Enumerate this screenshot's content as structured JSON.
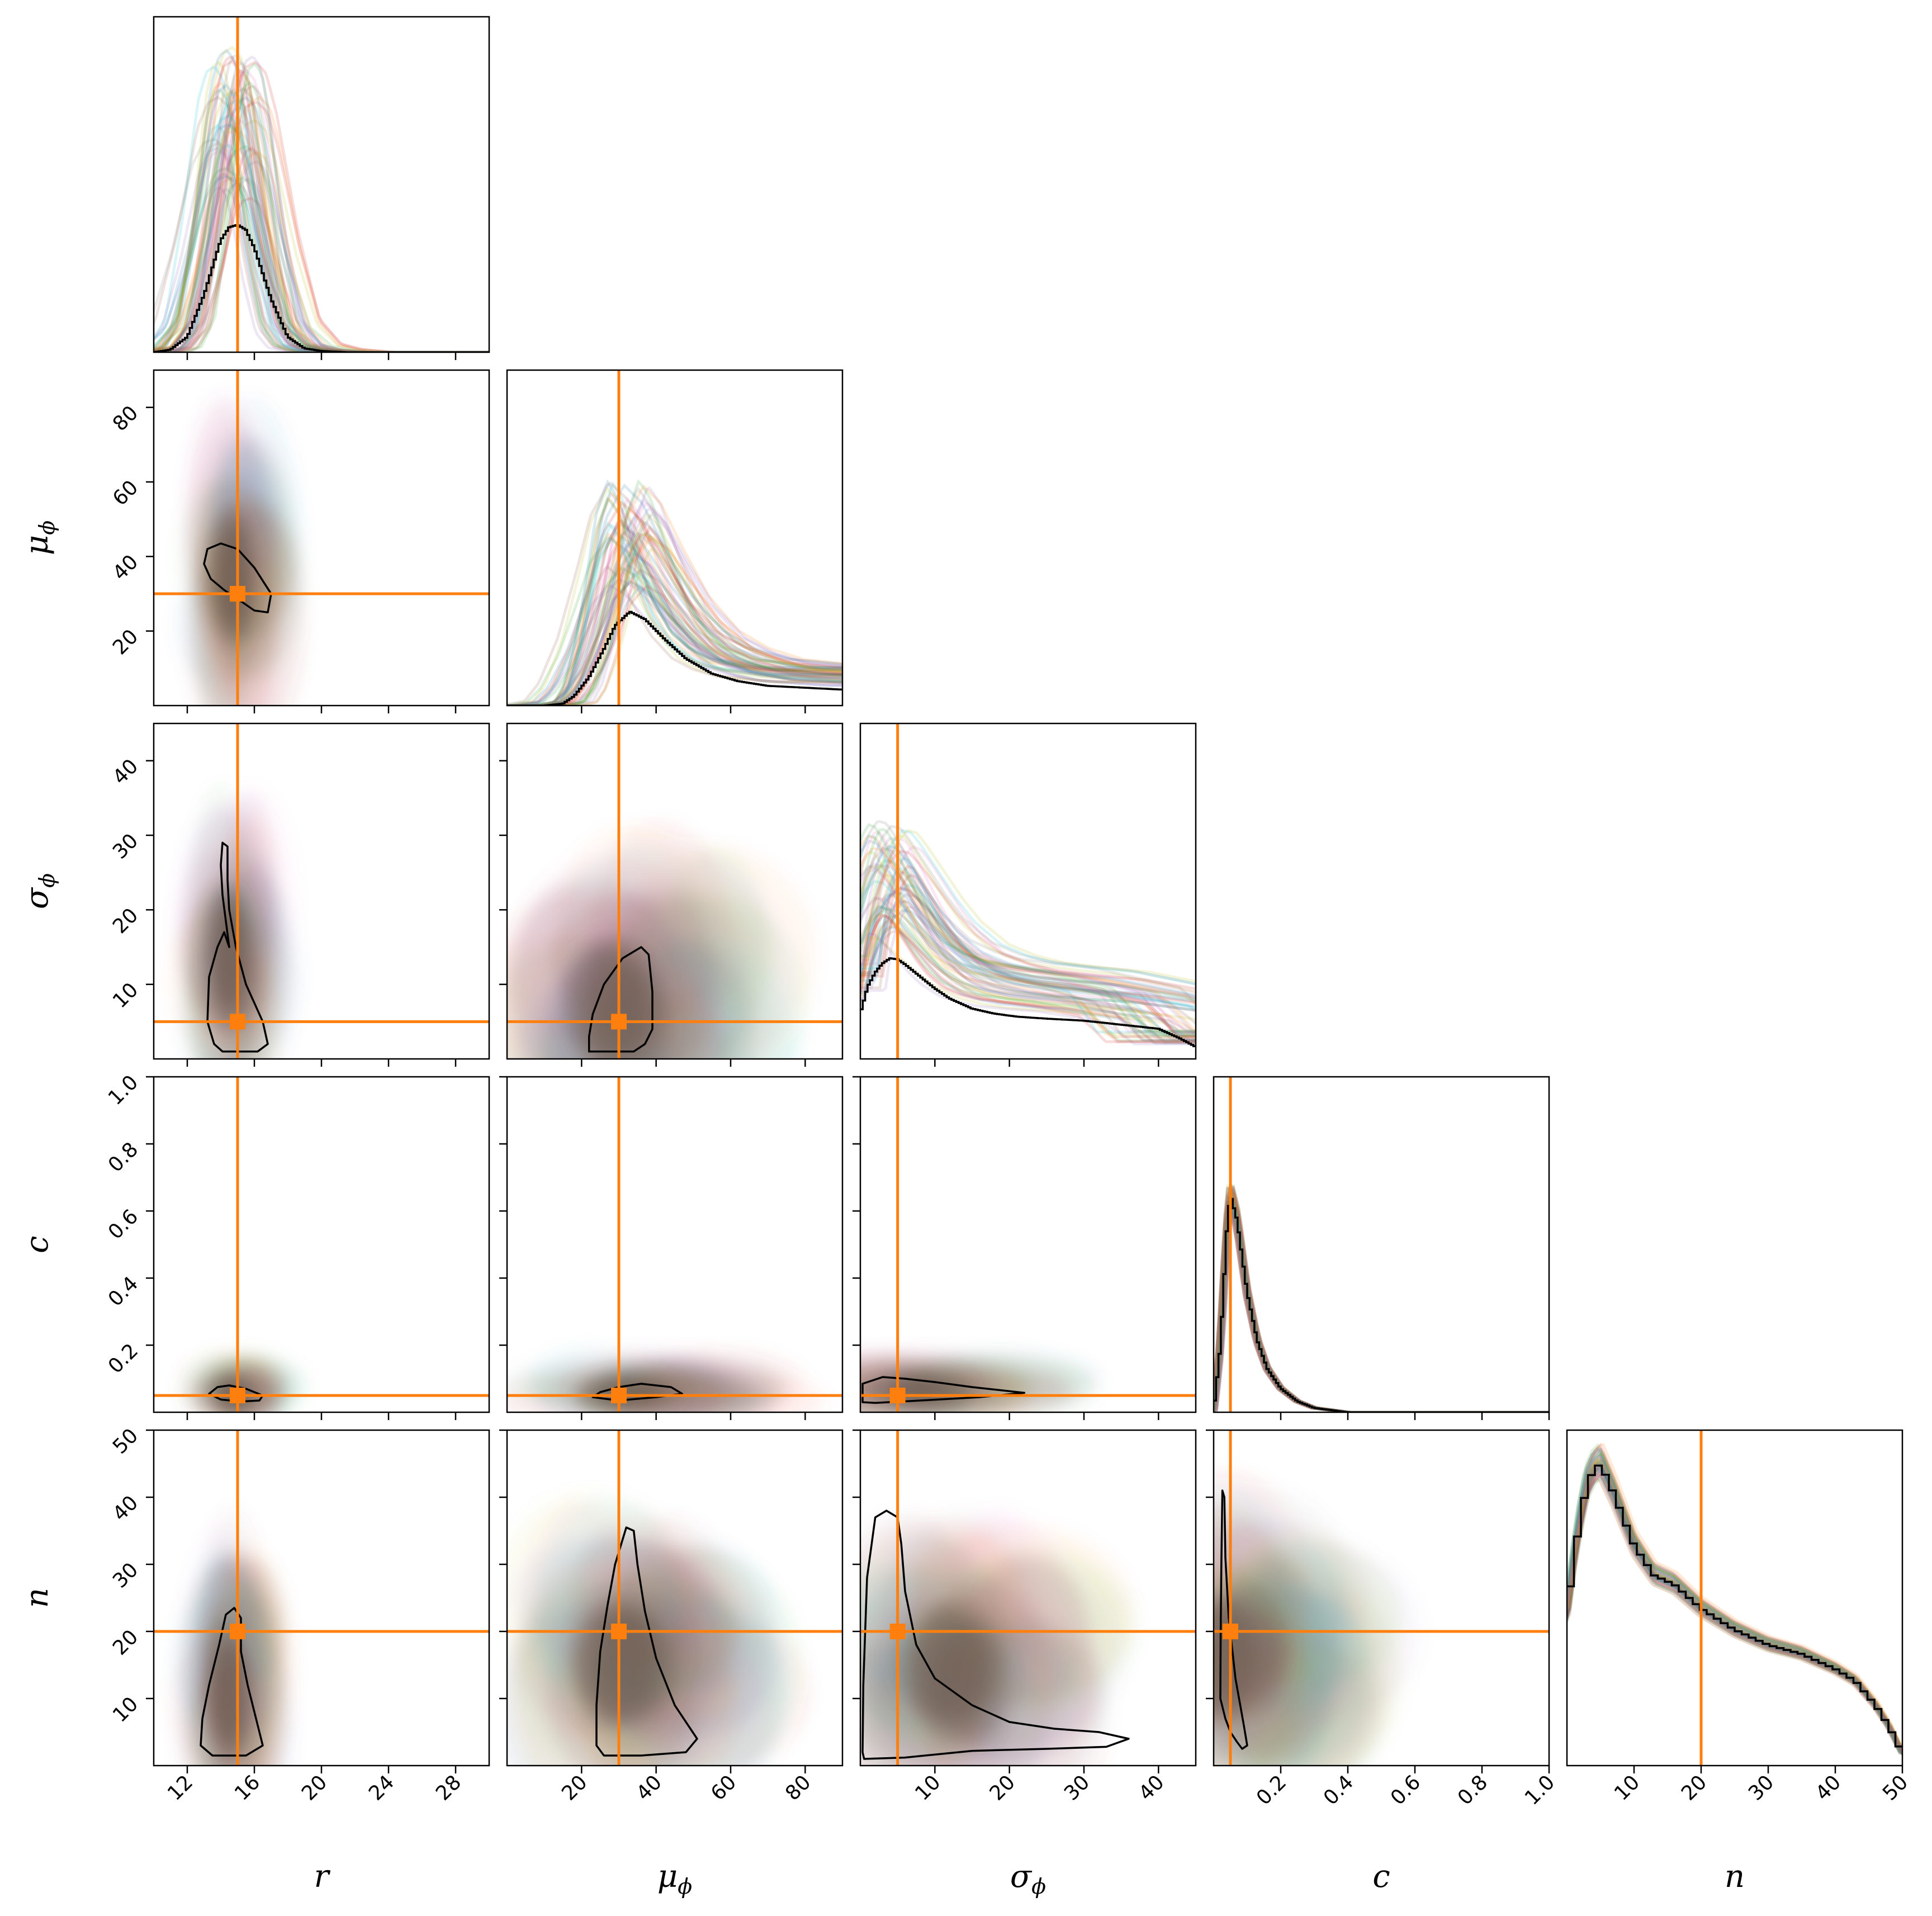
{
  "colors": {
    "truth": "#ff7f0e",
    "contour": "#000000",
    "sample_palette": [
      "#1f77b4",
      "#ff7f0e",
      "#2ca02c",
      "#d62728",
      "#9467bd",
      "#8c564b",
      "#e377c2",
      "#7f7f7f",
      "#bcbd22",
      "#17becf"
    ]
  },
  "chart_data": {
    "type": "corner",
    "parameters": [
      {
        "key": "r",
        "label": "r",
        "sub": "",
        "range": [
          10,
          30
        ],
        "ticks": [
          12,
          16,
          20,
          24,
          28
        ],
        "truth": 15
      },
      {
        "key": "mu_phi",
        "label": "μ",
        "sub": "ϕ",
        "range": [
          0,
          90
        ],
        "ticks": [
          20,
          40,
          60,
          80
        ],
        "truth": 30
      },
      {
        "key": "sigma_phi",
        "label": "σ",
        "sub": "ϕ",
        "range": [
          0,
          45
        ],
        "ticks": [
          10,
          20,
          30,
          40
        ],
        "truth": 5
      },
      {
        "key": "c",
        "label": "c",
        "sub": "",
        "range": [
          0,
          1.0
        ],
        "ticks": [
          0.2,
          0.4,
          0.6,
          0.8,
          1.0
        ],
        "tick_labels": [
          "0.2",
          "0.4",
          "0.6",
          "0.8",
          "1.0"
        ],
        "truth": 0.05
      },
      {
        "key": "n",
        "label": "n",
        "sub": "",
        "range": [
          0,
          50
        ],
        "ticks": [
          10,
          20,
          30,
          40,
          50
        ],
        "truth": 20
      }
    ],
    "diagonal_pdfs": [
      {
        "param": "r",
        "x": [
          10,
          11,
          12,
          13,
          14,
          14.5,
          15,
          15.5,
          16,
          17,
          18,
          19,
          20,
          21.5,
          30
        ],
        "y": [
          0,
          0.02,
          0.12,
          0.45,
          0.88,
          0.98,
          1.0,
          0.96,
          0.82,
          0.42,
          0.12,
          0.03,
          0.01,
          0,
          0
        ],
        "peak_frac": 0.38
      },
      {
        "param": "mu_phi",
        "x": [
          0,
          10,
          15,
          18,
          22,
          26,
          29,
          33,
          37,
          42,
          48,
          55,
          62,
          70,
          80,
          90
        ],
        "y": [
          0,
          0,
          0.02,
          0.1,
          0.3,
          0.6,
          0.85,
          1.0,
          0.92,
          0.72,
          0.5,
          0.34,
          0.26,
          0.21,
          0.19,
          0.17
        ],
        "peak_frac": 0.28
      },
      {
        "param": "sigma_phi",
        "x": [
          0,
          1,
          2,
          3,
          4,
          5,
          6,
          8,
          10,
          12,
          15,
          18,
          21,
          25,
          30,
          35,
          40,
          43,
          45
        ],
        "y": [
          0.45,
          0.72,
          0.86,
          0.95,
          1.0,
          0.99,
          0.94,
          0.82,
          0.7,
          0.6,
          0.5,
          0.45,
          0.42,
          0.4,
          0.38,
          0.34,
          0.3,
          0.2,
          0.12
        ],
        "peak_frac": 0.3
      },
      {
        "param": "c",
        "x": [
          0,
          0.02,
          0.04,
          0.05,
          0.07,
          0.1,
          0.13,
          0.16,
          0.2,
          0.25,
          0.3,
          0.35,
          0.4,
          0.5,
          0.75
        ],
        "y": [
          0,
          0.3,
          0.85,
          1.0,
          0.88,
          0.55,
          0.33,
          0.2,
          0.11,
          0.05,
          0.02,
          0.01,
          0,
          0,
          0
        ],
        "peak_frac": 0.65
      },
      {
        "param": "n",
        "x": [
          0,
          1,
          2,
          3,
          4,
          5,
          7,
          10,
          13,
          16,
          20,
          25,
          30,
          35,
          40,
          43,
          46,
          48,
          50
        ],
        "y": [
          0.5,
          0.68,
          0.82,
          0.93,
          0.98,
          1.0,
          0.9,
          0.73,
          0.63,
          0.6,
          0.52,
          0.45,
          0.4,
          0.37,
          0.32,
          0.28,
          0.2,
          0.13,
          0.04
        ],
        "peak_frac": 0.9,
        "step": true
      }
    ],
    "contours": [
      {
        "row": "mu_phi",
        "col": "r",
        "points": [
          [
            13,
            38
          ],
          [
            13.2,
            42
          ],
          [
            14,
            43.5
          ],
          [
            15,
            42
          ],
          [
            16,
            37
          ],
          [
            17,
            30
          ],
          [
            16.8,
            25
          ],
          [
            16,
            25.5
          ],
          [
            15.2,
            28
          ],
          [
            14.2,
            31
          ],
          [
            13.4,
            34
          ],
          [
            13,
            38
          ]
        ]
      },
      {
        "row": "sigma_phi",
        "col": "r",
        "points": [
          [
            14.1,
            1
          ],
          [
            13.6,
            2
          ],
          [
            13.2,
            5
          ],
          [
            13.3,
            11
          ],
          [
            13.8,
            15
          ],
          [
            14.2,
            17
          ],
          [
            14.5,
            15
          ],
          [
            14.1,
            22
          ],
          [
            14.0,
            26
          ],
          [
            14.1,
            29
          ],
          [
            14.4,
            28.5
          ],
          [
            14.4,
            24
          ],
          [
            14.5,
            20
          ],
          [
            14.9,
            15
          ],
          [
            15.5,
            10
          ],
          [
            16.5,
            5
          ],
          [
            16.8,
            2
          ],
          [
            16.2,
            1
          ],
          [
            14.1,
            1
          ]
        ]
      },
      {
        "row": "sigma_phi",
        "col": "mu_phi",
        "points": [
          [
            22,
            1
          ],
          [
            22,
            3
          ],
          [
            23,
            6
          ],
          [
            26,
            10
          ],
          [
            31,
            13.5
          ],
          [
            36,
            15
          ],
          [
            38,
            14
          ],
          [
            39,
            9
          ],
          [
            39,
            4
          ],
          [
            37,
            2
          ],
          [
            34,
            1
          ],
          [
            22,
            1
          ]
        ]
      },
      {
        "row": "c",
        "col": "r",
        "points": [
          [
            13.3,
            0.055
          ],
          [
            13.8,
            0.075
          ],
          [
            14.5,
            0.08
          ],
          [
            15.5,
            0.07
          ],
          [
            16.5,
            0.05
          ],
          [
            16.3,
            0.035
          ],
          [
            15.2,
            0.032
          ],
          [
            14,
            0.038
          ],
          [
            13.3,
            0.055
          ]
        ]
      },
      {
        "row": "c",
        "col": "mu_phi",
        "points": [
          [
            23,
            0.045
          ],
          [
            25,
            0.06
          ],
          [
            30,
            0.075
          ],
          [
            36,
            0.085
          ],
          [
            44,
            0.075
          ],
          [
            47,
            0.055
          ],
          [
            40,
            0.045
          ],
          [
            30,
            0.035
          ],
          [
            23,
            0.045
          ]
        ]
      },
      {
        "row": "c",
        "col": "sigma_phi",
        "points": [
          [
            0.3,
            0.03
          ],
          [
            0.3,
            0.085
          ],
          [
            3,
            0.105
          ],
          [
            6,
            0.1
          ],
          [
            10,
            0.09
          ],
          [
            15,
            0.075
          ],
          [
            22,
            0.058
          ],
          [
            16,
            0.045
          ],
          [
            8,
            0.035
          ],
          [
            2,
            0.028
          ],
          [
            0.3,
            0.03
          ]
        ]
      },
      {
        "row": "n",
        "col": "r",
        "points": [
          [
            12.8,
            3
          ],
          [
            12.9,
            7
          ],
          [
            13.3,
            12
          ],
          [
            13.9,
            18
          ],
          [
            14.3,
            22.5
          ],
          [
            14.8,
            23.5
          ],
          [
            15.2,
            22
          ],
          [
            15.2,
            17
          ],
          [
            15.6,
            12
          ],
          [
            16.1,
            7
          ],
          [
            16.5,
            3
          ],
          [
            15.5,
            1.5
          ],
          [
            13.5,
            1.5
          ],
          [
            12.8,
            3
          ]
        ]
      },
      {
        "row": "n",
        "col": "mu_phi",
        "points": [
          [
            24,
            3
          ],
          [
            24,
            9
          ],
          [
            25,
            17
          ],
          [
            27,
            24
          ],
          [
            29,
            30
          ],
          [
            32,
            35.5
          ],
          [
            34,
            35
          ],
          [
            35,
            30
          ],
          [
            37,
            23
          ],
          [
            40,
            16
          ],
          [
            45,
            9
          ],
          [
            51,
            4
          ],
          [
            48,
            2
          ],
          [
            36,
            1.5
          ],
          [
            26,
            1.5
          ],
          [
            24,
            3
          ]
        ]
      },
      {
        "row": "n",
        "col": "sigma_phi",
        "points": [
          [
            0.3,
            2
          ],
          [
            0.4,
            12
          ],
          [
            0.9,
            28
          ],
          [
            2,
            37
          ],
          [
            3.5,
            38
          ],
          [
            5,
            37
          ],
          [
            5.5,
            33
          ],
          [
            6,
            26
          ],
          [
            7.5,
            18
          ],
          [
            10,
            13
          ],
          [
            15,
            9
          ],
          [
            20,
            6.5
          ],
          [
            26,
            5.5
          ],
          [
            32,
            5
          ],
          [
            36,
            4
          ],
          [
            33,
            2.8
          ],
          [
            25,
            2.5
          ],
          [
            15,
            2.2
          ],
          [
            6,
            1.2
          ],
          [
            0.5,
            1
          ],
          [
            0.3,
            2
          ]
        ]
      },
      {
        "row": "n",
        "col": "c",
        "points": [
          [
            0.02,
            10
          ],
          [
            0.021,
            20
          ],
          [
            0.023,
            30
          ],
          [
            0.026,
            41
          ],
          [
            0.032,
            40
          ],
          [
            0.035,
            31
          ],
          [
            0.045,
            22
          ],
          [
            0.065,
            13
          ],
          [
            0.09,
            6
          ],
          [
            0.1,
            3
          ],
          [
            0.085,
            2.5
          ],
          [
            0.07,
            3.5
          ],
          [
            0.05,
            5
          ],
          [
            0.035,
            7
          ],
          [
            0.02,
            10
          ]
        ]
      }
    ]
  }
}
